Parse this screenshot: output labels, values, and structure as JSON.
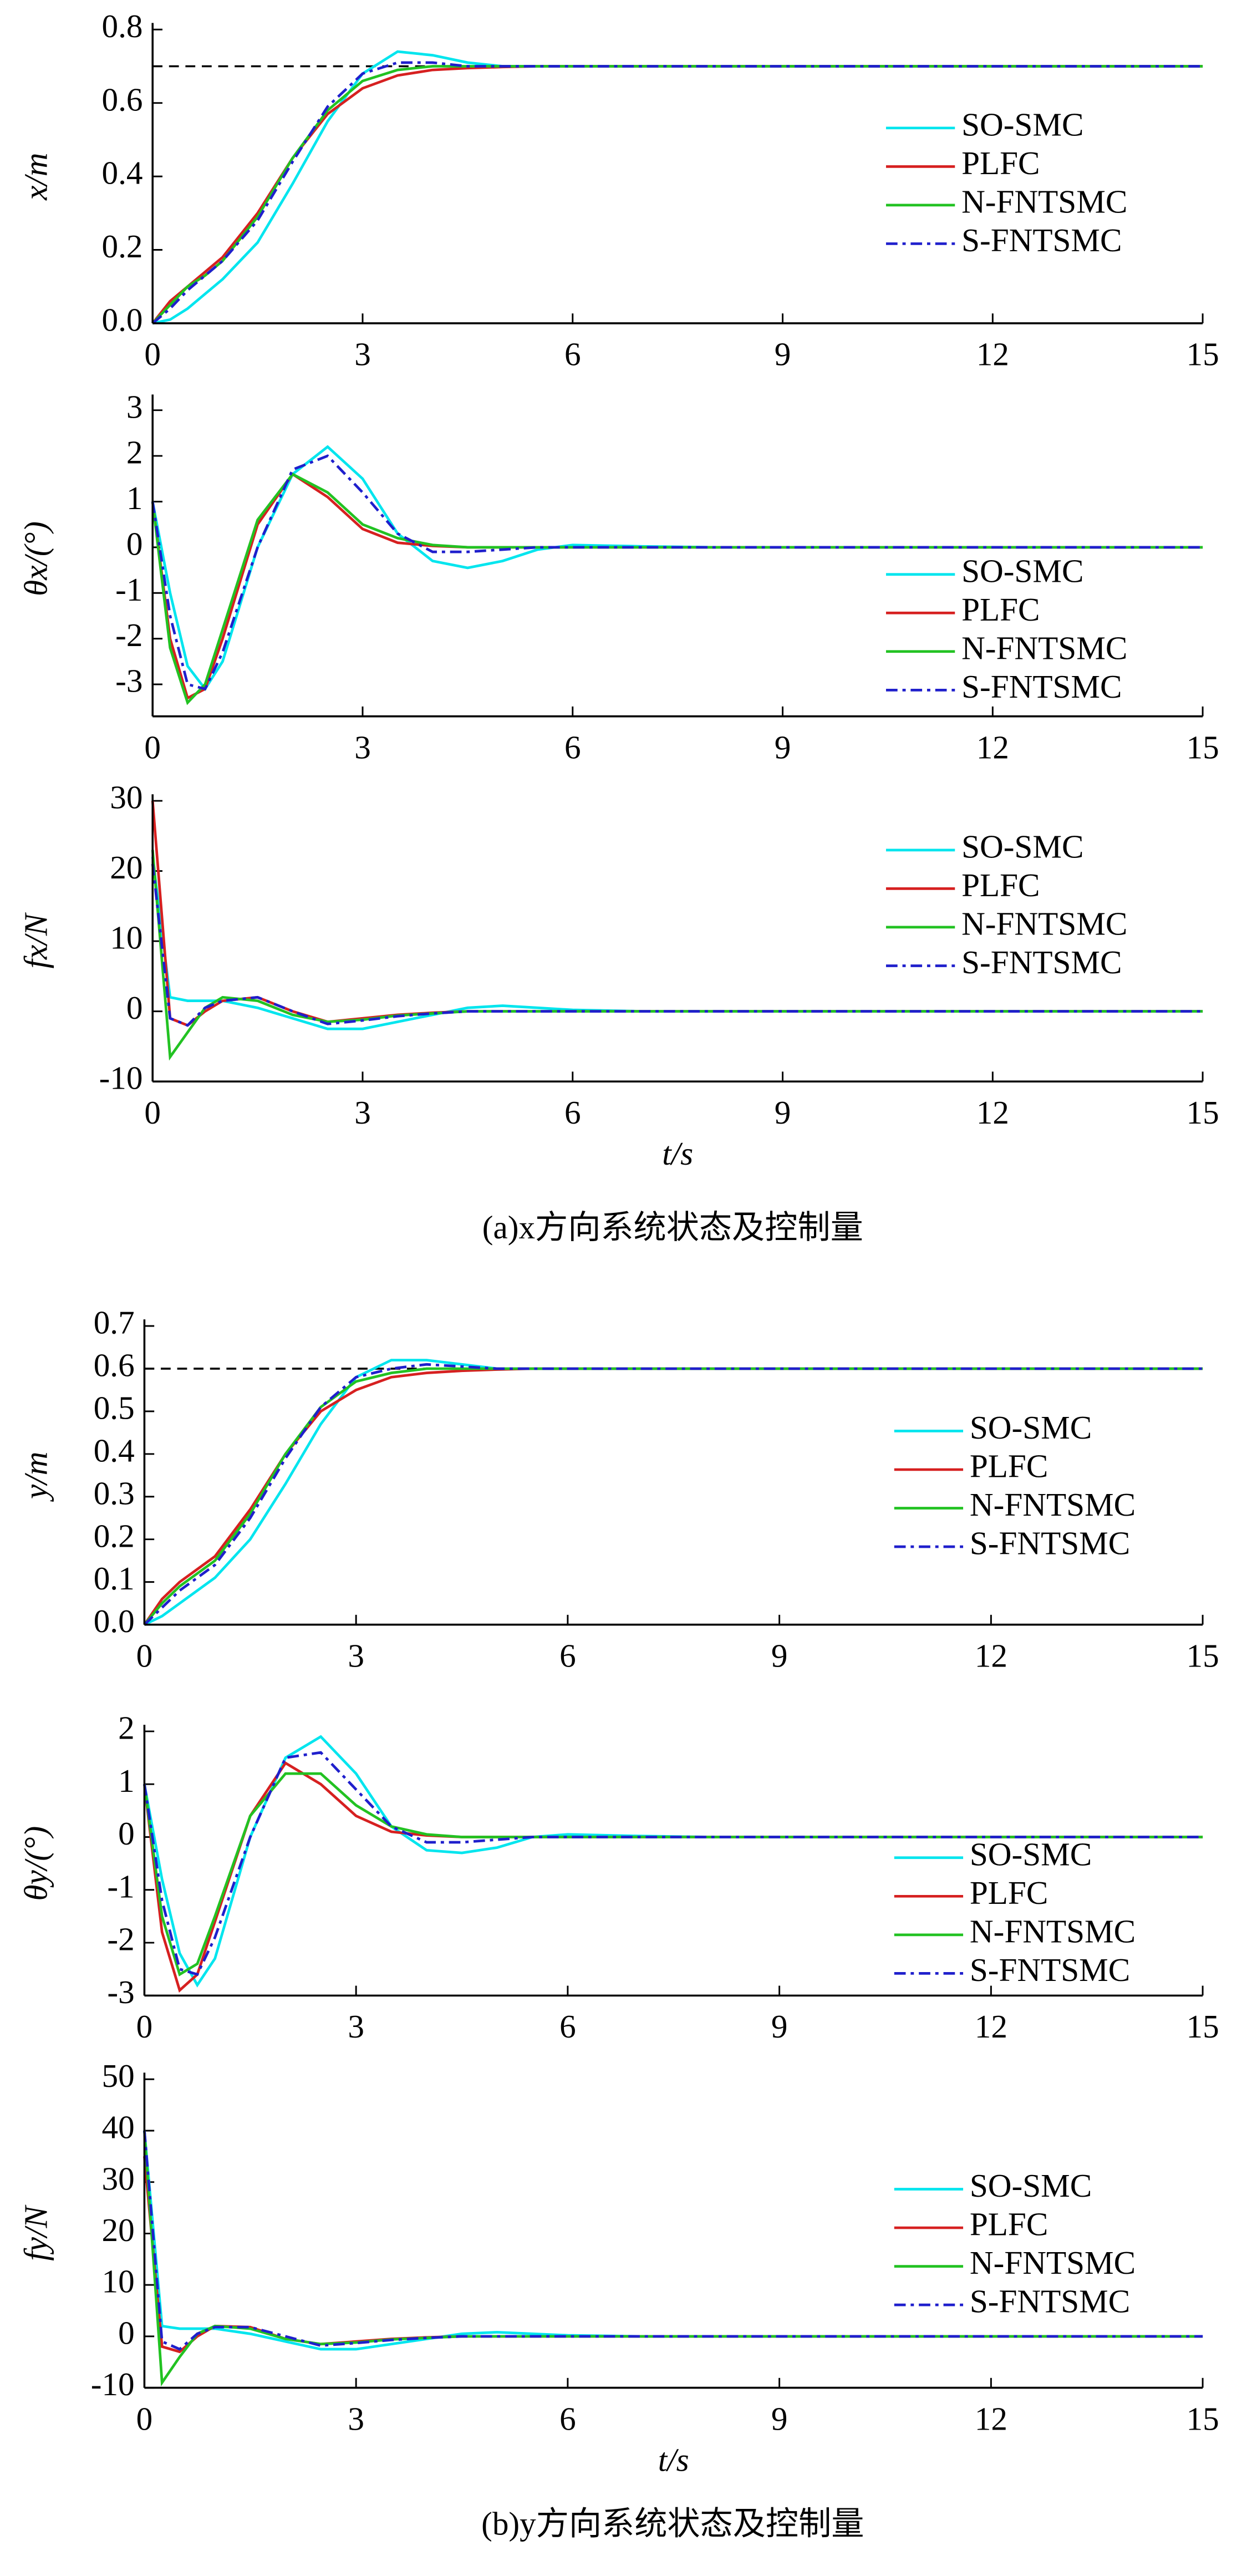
{
  "chart_data": [
    {
      "type": "line",
      "ylabel": "x/m",
      "xlim": [
        0,
        15
      ],
      "xticks": [
        0,
        3,
        6,
        9,
        12,
        15
      ],
      "ylim": [
        0,
        0.8
      ],
      "yticks": [
        {
          "value": 0,
          "label": "0.0"
        },
        0.2,
        0.4,
        0.6,
        0.8
      ],
      "setpoint": 0.7,
      "x": [
        0,
        0.25,
        0.5,
        0.75,
        1,
        1.5,
        2,
        2.5,
        3,
        3.5,
        4,
        4.5,
        5,
        5.5,
        6,
        7,
        8,
        9,
        12,
        15
      ],
      "series": [
        {
          "name": "SO-SMC",
          "color": "#00e5ee",
          "values": [
            0,
            0.01,
            0.04,
            0.08,
            0.12,
            0.22,
            0.38,
            0.55,
            0.68,
            0.74,
            0.73,
            0.71,
            0.7,
            0.7,
            0.7,
            0.7,
            0.7,
            0.7,
            0.7,
            0.7
          ]
        },
        {
          "name": "PLFC",
          "color": "#d62020",
          "values": [
            0,
            0.06,
            0.1,
            0.14,
            0.18,
            0.3,
            0.45,
            0.57,
            0.64,
            0.675,
            0.69,
            0.695,
            0.698,
            0.7,
            0.7,
            0.7,
            0.7,
            0.7,
            0.7,
            0.7
          ]
        },
        {
          "name": "N-FNTSMC",
          "color": "#22c222",
          "values": [
            0,
            0.05,
            0.1,
            0.13,
            0.17,
            0.29,
            0.45,
            0.58,
            0.66,
            0.69,
            0.7,
            0.7,
            0.7,
            0.7,
            0.7,
            0.7,
            0.7,
            0.7,
            0.7,
            0.7
          ]
        },
        {
          "name": "S-FNTSMC",
          "color": "#1f1fcc",
          "dash": "dashdot",
          "values": [
            0,
            0.04,
            0.09,
            0.13,
            0.17,
            0.28,
            0.44,
            0.59,
            0.68,
            0.71,
            0.71,
            0.7,
            0.7,
            0.7,
            0.7,
            0.7,
            0.7,
            0.7,
            0.7,
            0.7
          ]
        }
      ]
    },
    {
      "type": "line",
      "ylabel": "θx/(°)",
      "xlim": [
        0,
        15
      ],
      "xticks": [
        0,
        3,
        6,
        9,
        12,
        15
      ],
      "ylim": [
        -3.7,
        3.2
      ],
      "yticks": [
        -3,
        -2,
        -1,
        0,
        1,
        2,
        3
      ],
      "x": [
        0,
        0.25,
        0.5,
        0.75,
        1,
        1.5,
        2,
        2.5,
        3,
        3.5,
        4,
        4.5,
        5,
        5.5,
        6,
        7,
        8,
        9,
        12,
        15
      ],
      "series": [
        {
          "name": "SO-SMC",
          "color": "#00e5ee",
          "values": [
            1,
            -1,
            -2.6,
            -3.1,
            -2.5,
            0,
            1.6,
            2.2,
            1.5,
            0.3,
            -0.3,
            -0.45,
            -0.3,
            -0.05,
            0.05,
            0.02,
            0,
            0,
            0,
            0
          ]
        },
        {
          "name": "PLFC",
          "color": "#d62020",
          "values": [
            1,
            -2,
            -3.3,
            -3.1,
            -2,
            0.5,
            1.6,
            1.1,
            0.4,
            0.1,
            0.03,
            0,
            0,
            0,
            0,
            0,
            0,
            0,
            0,
            0
          ]
        },
        {
          "name": "N-FNTSMC",
          "color": "#22c222",
          "values": [
            1,
            -2.2,
            -3.4,
            -3,
            -1.8,
            0.6,
            1.6,
            1.2,
            0.5,
            0.2,
            0.05,
            0,
            0,
            0,
            0,
            0,
            0,
            0,
            0,
            0
          ]
        },
        {
          "name": "S-FNTSMC",
          "color": "#1f1fcc",
          "dash": "dashdot",
          "values": [
            1,
            -1.5,
            -3,
            -3.1,
            -2.3,
            0,
            1.7,
            2,
            1.2,
            0.3,
            -0.1,
            -0.1,
            -0.05,
            0,
            0,
            0,
            0,
            0,
            0,
            0
          ]
        }
      ]
    },
    {
      "type": "line",
      "ylabel": "fx/N",
      "xlabel": "t/s",
      "xlim": [
        0,
        15
      ],
      "xticks": [
        0,
        3,
        6,
        9,
        12,
        15
      ],
      "ylim": [
        -10,
        30
      ],
      "yticks": [
        -10,
        0,
        10,
        20,
        30
      ],
      "x": [
        0,
        0.25,
        0.5,
        0.75,
        1,
        1.5,
        2,
        2.5,
        3,
        3.5,
        4,
        4.5,
        5,
        5.5,
        6,
        7,
        8,
        9,
        12,
        15
      ],
      "series": [
        {
          "name": "SO-SMC",
          "color": "#00e5ee",
          "values": [
            22,
            2,
            1.5,
            1.5,
            1.5,
            0.5,
            -1,
            -2.5,
            -2.5,
            -1.5,
            -0.5,
            0.5,
            0.8,
            0.5,
            0.2,
            0,
            0,
            0,
            0,
            0
          ]
        },
        {
          "name": "PLFC",
          "color": "#d62020",
          "values": [
            30,
            -1,
            -2,
            0,
            1.5,
            2,
            0,
            -1.5,
            -1,
            -0.5,
            -0.2,
            0,
            0,
            0,
            0,
            0,
            0,
            0,
            0,
            0
          ]
        },
        {
          "name": "N-FNTSMC",
          "color": "#22c222",
          "values": [
            23,
            -6.5,
            -3,
            0.5,
            2,
            1.5,
            -0.5,
            -1.5,
            -1.2,
            -0.6,
            -0.3,
            0,
            0,
            0,
            0,
            0,
            0,
            0,
            0,
            0
          ]
        },
        {
          "name": "S-FNTSMC",
          "color": "#1f1fcc",
          "dash": "dashdot",
          "values": [
            21,
            -1,
            -2,
            0.5,
            1.5,
            2,
            0,
            -1.8,
            -1.3,
            -0.7,
            -0.3,
            0,
            0,
            0,
            0,
            0,
            0,
            0,
            0,
            0
          ]
        }
      ]
    },
    {
      "type": "line",
      "ylabel": "y/m",
      "xlim": [
        0,
        15
      ],
      "xticks": [
        0,
        3,
        6,
        9,
        12,
        15
      ],
      "ylim": [
        0,
        0.7
      ],
      "yticks": [
        {
          "value": 0,
          "label": "0.0"
        },
        0.1,
        0.2,
        0.3,
        0.4,
        0.5,
        0.6,
        0.7
      ],
      "setpoint": 0.6,
      "x": [
        0,
        0.25,
        0.5,
        0.75,
        1,
        1.5,
        2,
        2.5,
        3,
        3.5,
        4,
        4.5,
        5,
        5.5,
        6,
        7,
        8,
        9,
        12,
        15
      ],
      "series": [
        {
          "name": "SO-SMC",
          "color": "#00e5ee",
          "values": [
            0,
            0.02,
            0.05,
            0.08,
            0.11,
            0.2,
            0.33,
            0.47,
            0.58,
            0.62,
            0.62,
            0.61,
            0.6,
            0.6,
            0.6,
            0.6,
            0.6,
            0.6,
            0.6,
            0.6
          ]
        },
        {
          "name": "PLFC",
          "color": "#d62020",
          "values": [
            0,
            0.06,
            0.1,
            0.13,
            0.16,
            0.27,
            0.4,
            0.5,
            0.55,
            0.58,
            0.59,
            0.595,
            0.598,
            0.6,
            0.6,
            0.6,
            0.6,
            0.6,
            0.6,
            0.6
          ]
        },
        {
          "name": "N-FNTSMC",
          "color": "#22c222",
          "values": [
            0,
            0.05,
            0.09,
            0.12,
            0.15,
            0.26,
            0.4,
            0.51,
            0.57,
            0.59,
            0.6,
            0.6,
            0.6,
            0.6,
            0.6,
            0.6,
            0.6,
            0.6,
            0.6,
            0.6
          ]
        },
        {
          "name": "S-FNTSMC",
          "color": "#1f1fcc",
          "dash": "dashdot",
          "values": [
            0,
            0.04,
            0.08,
            0.11,
            0.14,
            0.25,
            0.39,
            0.51,
            0.58,
            0.6,
            0.61,
            0.605,
            0.6,
            0.6,
            0.6,
            0.6,
            0.6,
            0.6,
            0.6,
            0.6
          ]
        }
      ]
    },
    {
      "type": "line",
      "ylabel": "θy/(°)",
      "xlim": [
        0,
        15
      ],
      "xticks": [
        0,
        3,
        6,
        9,
        12,
        15
      ],
      "ylim": [
        -3,
        2
      ],
      "yticks": [
        -3,
        -2,
        -1,
        0,
        1,
        2
      ],
      "x": [
        0,
        0.25,
        0.5,
        0.75,
        1,
        1.5,
        2,
        2.5,
        3,
        3.5,
        4,
        4.5,
        5,
        5.5,
        6,
        7,
        8,
        9,
        12,
        15
      ],
      "series": [
        {
          "name": "SO-SMC",
          "color": "#00e5ee",
          "values": [
            1,
            -0.8,
            -2.2,
            -2.8,
            -2.3,
            0,
            1.5,
            1.9,
            1.2,
            0.2,
            -0.25,
            -0.3,
            -0.2,
            0,
            0.05,
            0.02,
            0,
            0,
            0,
            0
          ]
        },
        {
          "name": "PLFC",
          "color": "#d62020",
          "values": [
            1,
            -1.8,
            -2.9,
            -2.6,
            -1.6,
            0.4,
            1.4,
            1,
            0.4,
            0.1,
            0.03,
            0,
            0,
            0,
            0,
            0,
            0,
            0,
            0,
            0
          ]
        },
        {
          "name": "N-FNTSMC",
          "color": "#22c222",
          "values": [
            1,
            -1.5,
            -2.6,
            -2.4,
            -1.5,
            0.4,
            1.2,
            1.2,
            0.6,
            0.2,
            0.05,
            0,
            0,
            0,
            0,
            0,
            0,
            0,
            0,
            0
          ]
        },
        {
          "name": "S-FNTSMC",
          "color": "#1f1fcc",
          "dash": "dashdot",
          "values": [
            1,
            -1.2,
            -2.5,
            -2.6,
            -1.9,
            0,
            1.5,
            1.6,
            0.9,
            0.2,
            -0.1,
            -0.1,
            -0.05,
            0,
            0,
            0,
            0,
            0,
            0,
            0
          ]
        }
      ]
    },
    {
      "type": "line",
      "ylabel": "fy/N",
      "xlabel": "t/s",
      "xlim": [
        0,
        15
      ],
      "xticks": [
        0,
        3,
        6,
        9,
        12,
        15
      ],
      "ylim": [
        -10,
        50
      ],
      "yticks": [
        -10,
        0,
        10,
        20,
        30,
        40,
        50
      ],
      "x": [
        0,
        0.25,
        0.5,
        0.75,
        1,
        1.5,
        2,
        2.5,
        3,
        3.5,
        4,
        4.5,
        5,
        5.5,
        6,
        7,
        8,
        9,
        12,
        15
      ],
      "series": [
        {
          "name": "SO-SMC",
          "color": "#00e5ee",
          "values": [
            40,
            2,
            1.5,
            1.5,
            1.5,
            0.5,
            -1,
            -2.5,
            -2.5,
            -1.5,
            -0.5,
            0.5,
            0.8,
            0.5,
            0.2,
            0,
            0,
            0,
            0,
            0
          ]
        },
        {
          "name": "PLFC",
          "color": "#d62020",
          "values": [
            35,
            -2,
            -3,
            0,
            2,
            1.8,
            -0.5,
            -1.5,
            -1,
            -0.5,
            -0.2,
            0,
            0,
            0,
            0,
            0,
            0,
            0,
            0,
            0
          ]
        },
        {
          "name": "N-FNTSMC",
          "color": "#22c222",
          "values": [
            40,
            -9,
            -4,
            0.5,
            2,
            1.5,
            -0.5,
            -1.5,
            -1.2,
            -0.6,
            -0.3,
            0,
            0,
            0,
            0,
            0,
            0,
            0,
            0,
            0
          ]
        },
        {
          "name": "S-FNTSMC",
          "color": "#1f1fcc",
          "dash": "dashdot",
          "values": [
            40,
            -1,
            -2.5,
            0.5,
            1.8,
            1.8,
            0,
            -1.8,
            -1.3,
            -0.7,
            -0.3,
            0,
            0,
            0,
            0,
            0,
            0,
            0,
            0,
            0
          ]
        }
      ]
    }
  ],
  "captions": [
    "(a)x方向系统状态及控制量",
    "(b)y方向系统状态及控制量"
  ]
}
